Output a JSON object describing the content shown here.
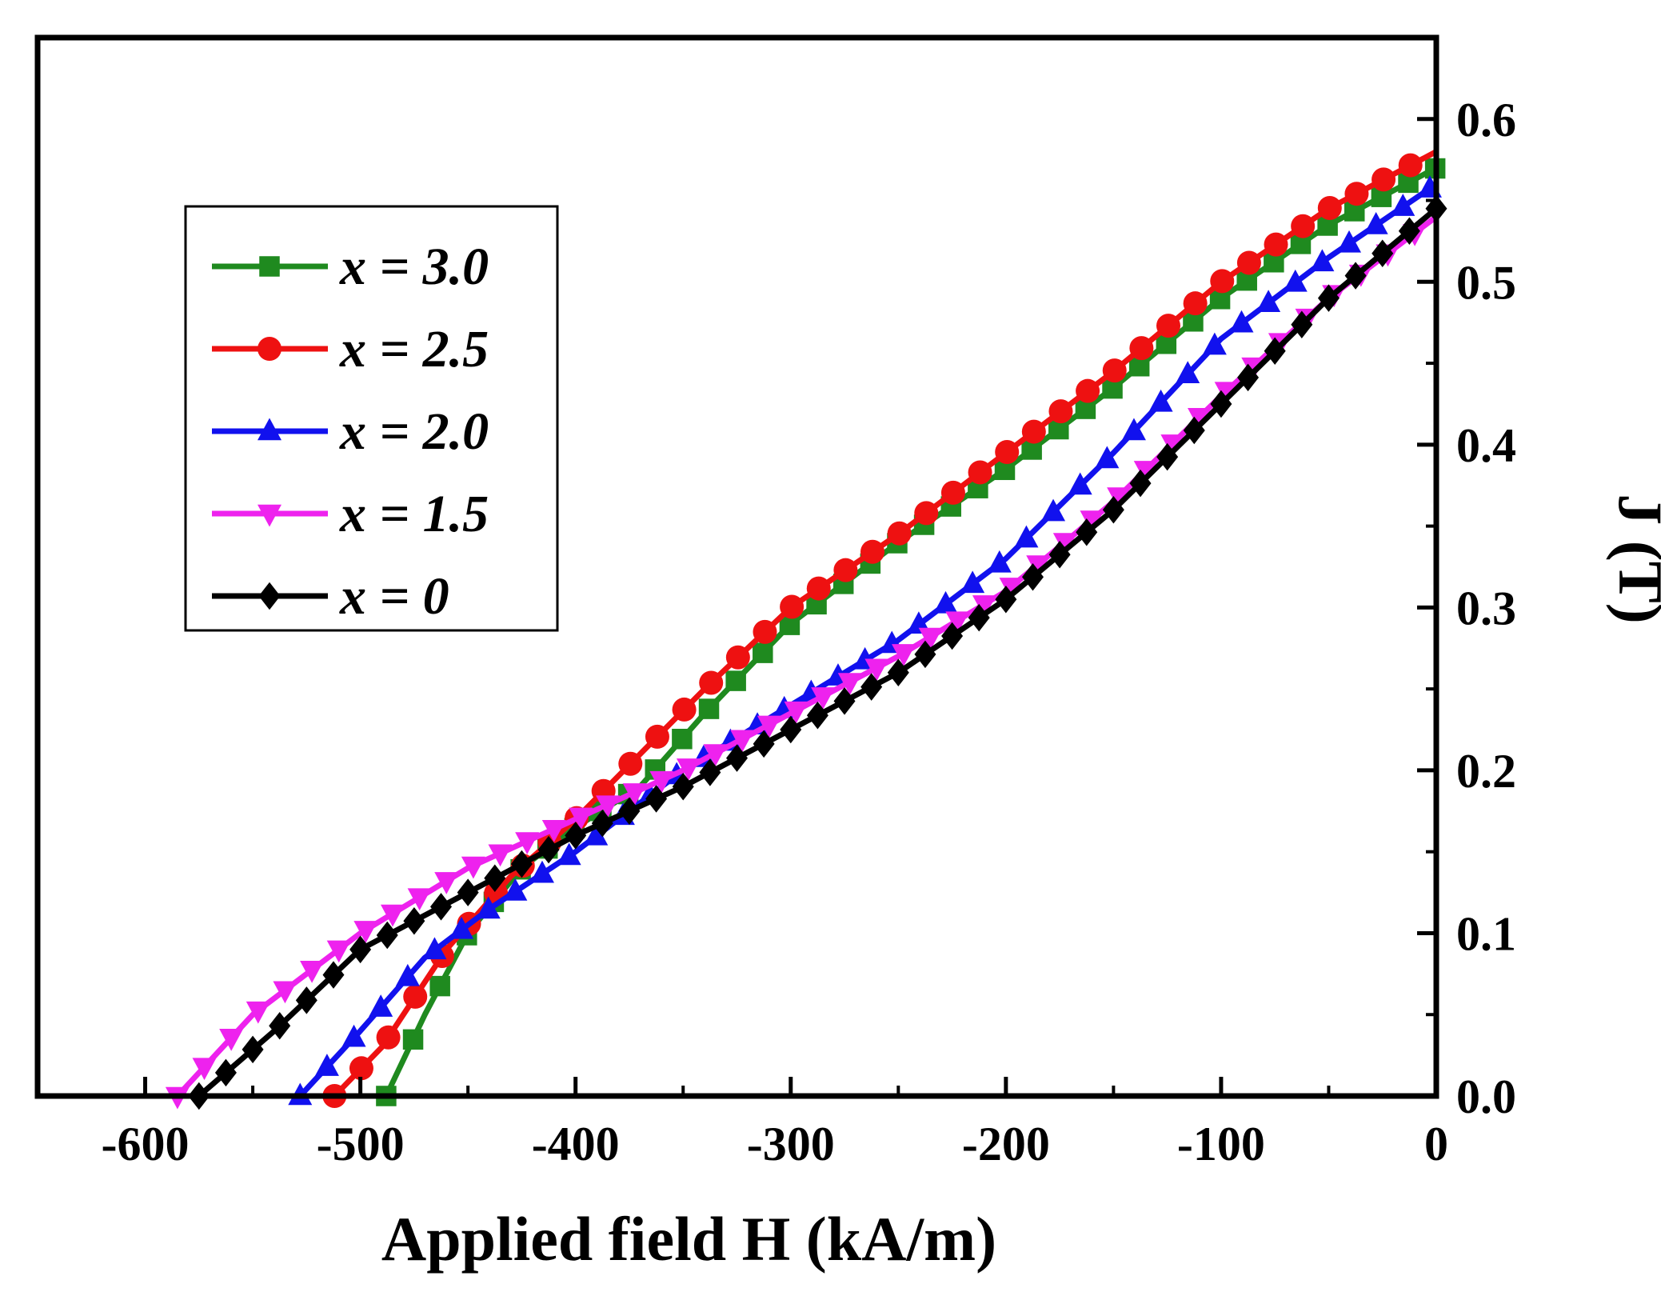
{
  "chart_data": {
    "type": "line",
    "xlabel": "Applied field H (kA/m)",
    "ylabel": "J (T)",
    "xlim": [
      -650,
      0
    ],
    "ylim": [
      0,
      0.65
    ],
    "x_ticks": [
      -600,
      -500,
      -400,
      -300,
      -200,
      -100,
      0
    ],
    "x_tick_labels": [
      "-600",
      "-500",
      "-400",
      "-300",
      "-200",
      "-100",
      "0"
    ],
    "y_ticks": [
      0.0,
      0.1,
      0.2,
      0.3,
      0.4,
      0.5,
      0.6
    ],
    "y_tick_labels": [
      "0.0",
      "0.1",
      "0.2",
      "0.3",
      "0.4",
      "0.5",
      "0.6"
    ],
    "y_axis_side": "right",
    "legend_position": "top-left",
    "series": [
      {
        "name": "x = 3.0",
        "color": "#1f8a1f",
        "marker": "square",
        "points": [
          [
            -488,
            0.0
          ],
          [
            -470,
            0.05
          ],
          [
            -450,
            0.1
          ],
          [
            -425,
            0.14
          ],
          [
            -400,
            0.165
          ],
          [
            -370,
            0.19
          ],
          [
            -340,
            0.235
          ],
          [
            -300,
            0.29
          ],
          [
            -250,
            0.34
          ],
          [
            -200,
            0.385
          ],
          [
            -150,
            0.435
          ],
          [
            -100,
            0.49
          ],
          [
            -50,
            0.535
          ],
          [
            0,
            0.57
          ]
        ]
      },
      {
        "name": "x = 2.5",
        "color": "#ee1111",
        "marker": "circle",
        "points": [
          [
            -512,
            0.0
          ],
          [
            -490,
            0.03
          ],
          [
            -460,
            0.09
          ],
          [
            -430,
            0.135
          ],
          [
            -400,
            0.17
          ],
          [
            -370,
            0.21
          ],
          [
            -340,
            0.25
          ],
          [
            -300,
            0.3
          ],
          [
            -250,
            0.345
          ],
          [
            -200,
            0.395
          ],
          [
            -150,
            0.445
          ],
          [
            -100,
            0.5
          ],
          [
            -50,
            0.545
          ],
          [
            0,
            0.58
          ]
        ]
      },
      {
        "name": "x = 2.0",
        "color": "#1111ee",
        "marker": "triangle-up",
        "points": [
          [
            -528,
            0.0
          ],
          [
            -500,
            0.04
          ],
          [
            -470,
            0.085
          ],
          [
            -440,
            0.115
          ],
          [
            -400,
            0.15
          ],
          [
            -350,
            0.2
          ],
          [
            -300,
            0.24
          ],
          [
            -250,
            0.28
          ],
          [
            -200,
            0.33
          ],
          [
            -150,
            0.395
          ],
          [
            -100,
            0.465
          ],
          [
            -50,
            0.515
          ],
          [
            0,
            0.56
          ]
        ]
      },
      {
        "name": "x = 1.5",
        "color": "#ee22ee",
        "marker": "triangle-down",
        "points": [
          [
            -585,
            0.0
          ],
          [
            -550,
            0.05
          ],
          [
            -500,
            0.1
          ],
          [
            -450,
            0.14
          ],
          [
            -400,
            0.17
          ],
          [
            -350,
            0.2
          ],
          [
            -300,
            0.235
          ],
          [
            -250,
            0.27
          ],
          [
            -200,
            0.31
          ],
          [
            -150,
            0.365
          ],
          [
            -100,
            0.43
          ],
          [
            -50,
            0.49
          ],
          [
            0,
            0.54
          ]
        ]
      },
      {
        "name": "x = 0",
        "color": "#000000",
        "marker": "diamond",
        "points": [
          [
            -575,
            0.0
          ],
          [
            -540,
            0.04
          ],
          [
            -500,
            0.09
          ],
          [
            -450,
            0.125
          ],
          [
            -400,
            0.16
          ],
          [
            -350,
            0.19
          ],
          [
            -300,
            0.225
          ],
          [
            -250,
            0.26
          ],
          [
            -200,
            0.305
          ],
          [
            -150,
            0.36
          ],
          [
            -100,
            0.425
          ],
          [
            -50,
            0.49
          ],
          [
            0,
            0.545
          ]
        ]
      }
    ]
  }
}
